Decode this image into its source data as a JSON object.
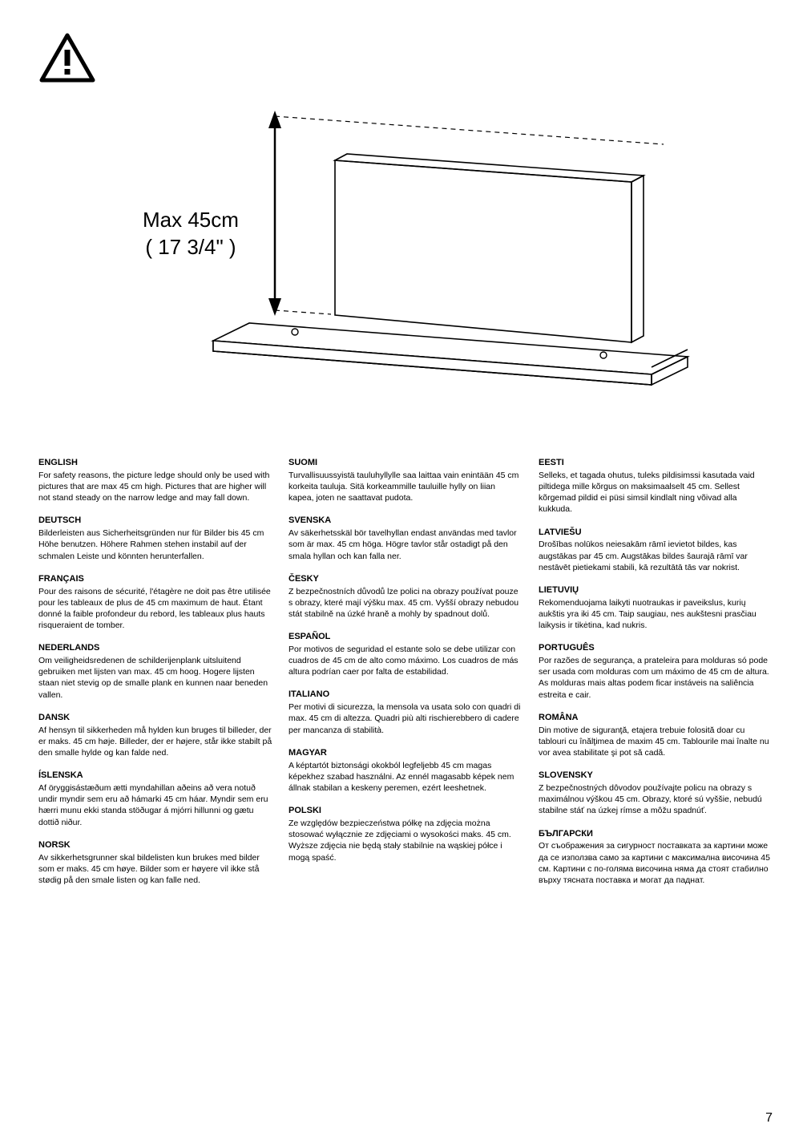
{
  "diagram": {
    "maxLabel1": "Max 45cm",
    "maxLabel2": "( 17 3/4\" )"
  },
  "columns": [
    [
      {
        "title": "ENGLISH",
        "body": "For safety reasons, the picture ledge should only be used with pictures that are max 45 cm high. Pictures that are higher will not stand steady on the narrow ledge and may fall down."
      },
      {
        "title": "DEUTSCH",
        "body": "Bilderleisten aus Sicherheitsgründen nur für Bilder bis 45 cm Höhe benutzen. Höhere Rahmen stehen instabil auf der schmalen Leiste und könnten herunterfallen."
      },
      {
        "title": "FRANÇAIS",
        "body": "Pour des raisons de sécurité, l'étagère ne doit pas être utilisée pour les tableaux de plus de 45 cm maximum de haut. Étant donné la faible profondeur du rebord, les tableaux plus hauts risqueraient de tomber."
      },
      {
        "title": "NEDERLANDS",
        "body": "Om veiligheidsredenen de schilderijenplank uitsluitend gebruiken met lijsten van max. 45 cm hoog. Hogere lijsten staan niet stevig op de smalle plank en kunnen naar beneden vallen."
      },
      {
        "title": "DANSK",
        "body": "Af hensyn til sikkerheden må hylden kun bruges til billeder, der er maks. 45 cm høje. Billeder, der er højere, står ikke stabilt på den smalle hylde og kan falde ned."
      },
      {
        "title": "ÍSLENSKA",
        "body": "Af öryggisástæðum ætti myndahillan aðeins að vera notuð undir myndir sem eru að hámarki 45 cm háar. Myndir sem eru hærri munu ekki standa stöðugar á mjórri hillunni og gætu dottið niður."
      },
      {
        "title": "NORSK",
        "body": "Av sikkerhetsgrunner skal bildelisten kun brukes med bilder som er maks. 45 cm høye. Bilder som er høyere vil ikke stå stødig på den smale listen og kan falle ned."
      }
    ],
    [
      {
        "title": "SUOMI",
        "body": "Turvallisuussyistä tauluhyllylle saa laittaa vain enintään 45 cm korkeita tauluja. Sitä korkeammille tauluille hylly on liian kapea, joten ne saattavat pudota."
      },
      {
        "title": "SVENSKA",
        "body": "Av säkerhetsskäl bör tavelhyllan endast användas med tavlor som är max. 45 cm höga. Högre tavlor står ostadigt på den smala hyllan och kan falla ner."
      },
      {
        "title": "ČESKY",
        "body": "Z bezpečnostních důvodů lze polici na obrazy používat pouze s obrazy, které mají výšku max. 45 cm. Vyšší obrazy nebudou stát stabilně na úzké hraně a mohly by spadnout dolů."
      },
      {
        "title": "ESPAÑOL",
        "body": "Por motivos de seguridad el estante solo se debe utilizar con cuadros de 45 cm de alto como máximo. Los cuadros de más altura podrían caer por falta de estabilidad."
      },
      {
        "title": "ITALIANO",
        "body": "Per motivi di sicurezza, la mensola va usata solo con quadri di max. 45 cm di altezza. Quadri più alti rischierebbero di cadere per mancanza di stabilità."
      },
      {
        "title": "MAGYAR",
        "body": "A képtartót biztonsági okokból legfeljebb 45 cm magas képekhez szabad használni. Az ennél magasabb képek nem állnak stabilan a keskeny peremen, ezért leeshetnek."
      },
      {
        "title": "POLSKI",
        "body": "Ze względów bezpieczeństwa półkę na zdjęcia można stosować wyłącznie ze zdjęciami o wysokości maks. 45 cm. Wyższe zdjęcia nie będą stały stabilnie na wąskiej półce i mogą spaść."
      }
    ],
    [
      {
        "title": "EESTI",
        "body": "Selleks, et tagada ohutus, tuleks pildisimssi kasutada vaid piltidega mille kõrgus on maksimaalselt 45 cm. Sellest kõrgemad pildid ei püsi simsil kindlalt ning võivad alla kukkuda."
      },
      {
        "title": "LATVIEŠU",
        "body": "Drošības nolūkos neiesakām rāmī ievietot bildes, kas augstākas par 45 cm. Augstākas bildes šaurajā rāmī var nestāvēt pietiekami stabili, kā rezultātā tās var nokrist."
      },
      {
        "title": "LIETUVIŲ",
        "body": "Rekomenduojama laikyti nuotraukas ir paveikslus, kurių aukštis yra iki 45 cm. Taip saugiau, nes aukštesni prasčiau laikysis ir tikėtina, kad nukris."
      },
      {
        "title": "PORTUGUÊS",
        "body": "Por razões de segurança, a prateleira para molduras só pode ser usada com molduras com um máximo de 45 cm de altura. As molduras mais altas podem ficar instáveis na saliência estreita e cair."
      },
      {
        "title": "ROMÂNA",
        "body": "Din motive de siguranţă, etajera trebuie folosită doar cu tablouri cu înălţimea de maxim 45 cm. Tablourile mai înalte nu vor avea stabilitate şi pot să cadă."
      },
      {
        "title": "SLOVENSKY",
        "body": "Z bezpečnostných dôvodov používajte policu na obrazy s maximálnou výškou 45 cm. Obrazy, ktoré sú vyššie, nebudú stabilne stáť na úzkej rímse a môžu spadnúť."
      },
      {
        "title": "БЪЛГАРСКИ",
        "body": "От съображения за сигурност поставката за картини може да се използва само за картини с максимална височина 45 см. Картини с по-голяма височина няма да стоят стабилно върху тясната поставка и могат да паднат."
      }
    ]
  ],
  "pageNumber": "7"
}
